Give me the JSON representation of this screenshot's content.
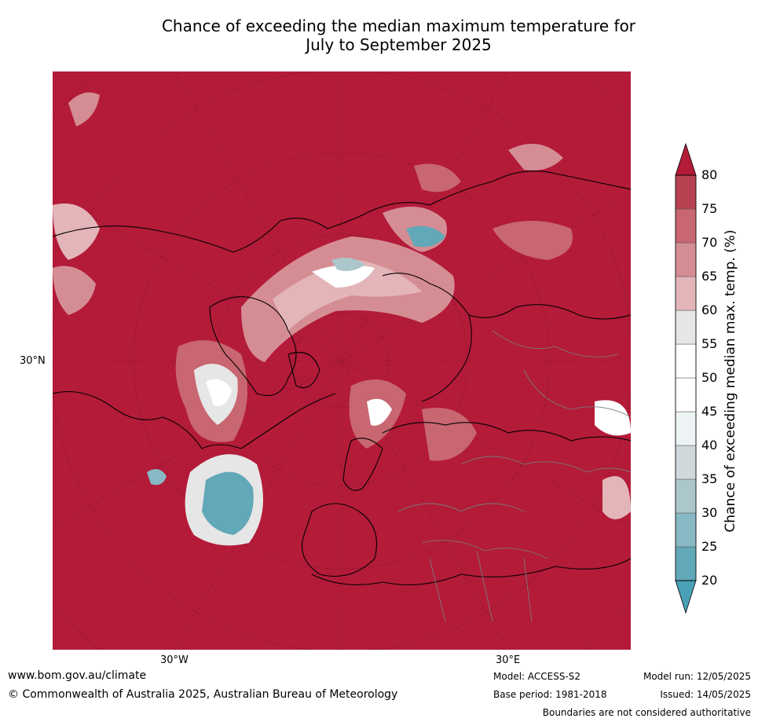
{
  "title": {
    "line1": "Chance of exceeding the median maximum temperature for",
    "line2": "July to September 2025"
  },
  "map": {
    "axis_labels": {
      "lat_left": "30°N",
      "lon_bottom_left": "30°W",
      "lon_bottom_right": "30°E"
    },
    "base_color": "#b31b39",
    "cool_color": "#4aa1b5"
  },
  "colorbar": {
    "label": "Chance of exceeding median max. temp. (%)",
    "ticks": [
      "20",
      "25",
      "30",
      "35",
      "40",
      "45",
      "50",
      "55",
      "60",
      "65",
      "70",
      "75",
      "80"
    ],
    "colors": [
      "#61a8b8",
      "#87b8c4",
      "#abc7cc",
      "#cfd8da",
      "#edf2f4",
      "#ffffff",
      "#ffffff",
      "#e6e6e6",
      "#e3b5b9",
      "#d58d94",
      "#c86671",
      "#b84152"
    ],
    "under_color": "#4aa1b5",
    "over_color": "#b31b39"
  },
  "footer": {
    "website": "www.bom.gov.au/climate",
    "copyright": "© Commonwealth of Australia 2025, Australian Bureau of Meteorology",
    "model": "Model: ACCESS-S2",
    "base_period": "Base period: 1981-2018",
    "model_run": "Model run: 12/05/2025",
    "issued": "Issued: 14/05/2025",
    "disclaimer": "Boundaries are not considered authoritative"
  }
}
